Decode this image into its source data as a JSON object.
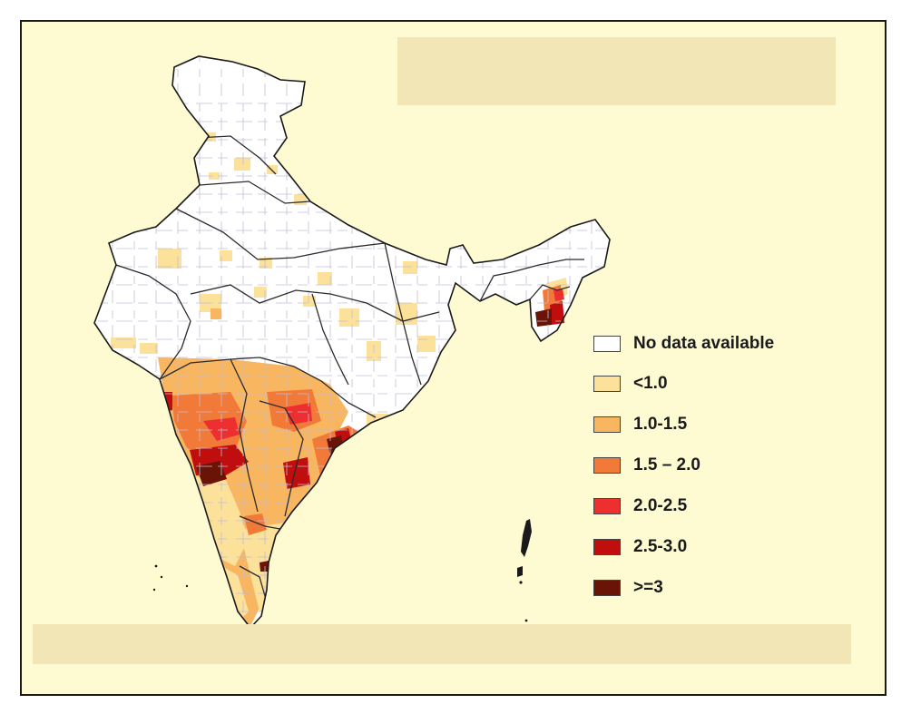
{
  "legend": {
    "items": [
      {
        "label": "No data available",
        "color": "#ffffff"
      },
      {
        "label": "<1.0",
        "color": "#fbe19a"
      },
      {
        "label": "1.0-1.5",
        "color": "#f9b660"
      },
      {
        "label": "1.5 – 2.0",
        "color": "#f27a38"
      },
      {
        "label": "2.0-2.5",
        "color": "#ee2f2f"
      },
      {
        "label": "2.5-3.0",
        "color": "#c00d0d"
      },
      {
        "label": ">=3",
        "color": "#6a1407"
      }
    ]
  },
  "colors": {
    "background": "#fefbd3",
    "banner": "#f2e5b6",
    "border": "#1a1a1a",
    "district_line": "#c3bdd6",
    "state_line": "#2a2a2a"
  }
}
